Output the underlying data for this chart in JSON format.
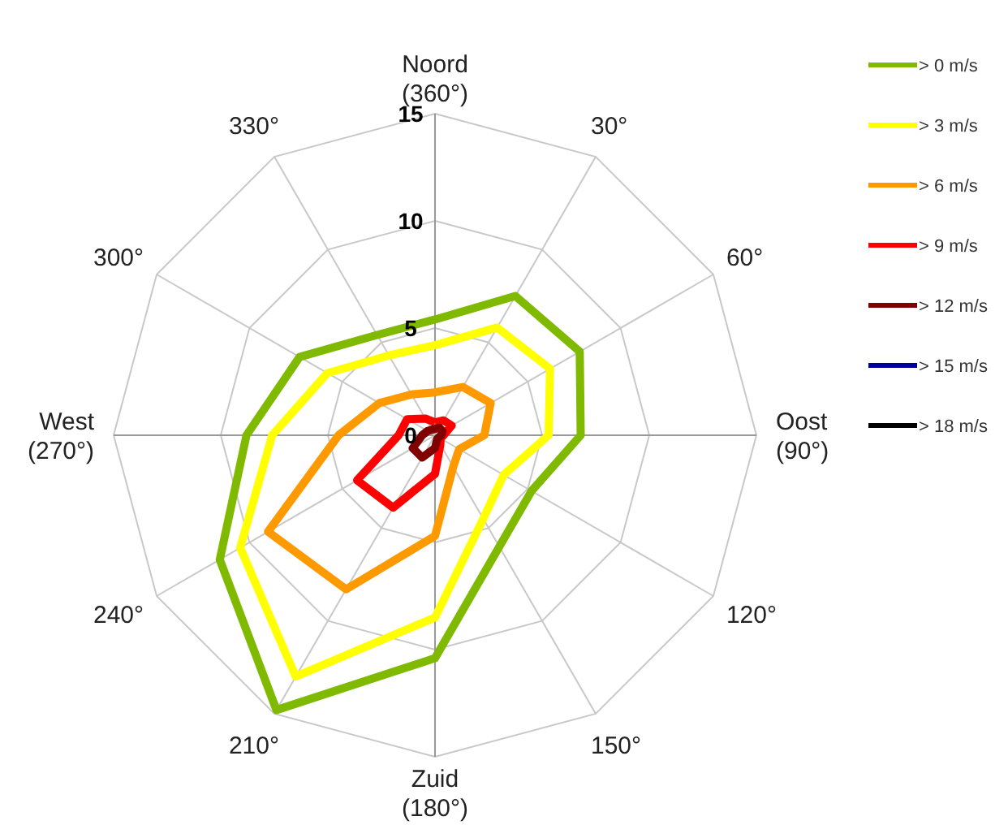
{
  "chart_data": {
    "type": "radar",
    "categories": [
      "Noord (360°)",
      "30°",
      "60°",
      "Oost (90°)",
      "120°",
      "150°",
      "Zuid (180°)",
      "210°",
      "240°",
      "West (270°)",
      "300°",
      "330°"
    ],
    "ylim": [
      0,
      15
    ],
    "yticks": [
      0,
      5,
      10,
      15
    ],
    "grid": true,
    "legend": "right",
    "marker": "none",
    "line_style": "solid",
    "series": [
      {
        "name": "> 0 m/s",
        "color": "#7fba00",
        "values": [
          5.4,
          7.5,
          7.8,
          6.8,
          5.2,
          6.0,
          10.4,
          14.8,
          11.6,
          8.8,
          7.3,
          5.4
        ]
      },
      {
        "name": "> 3 m/s",
        "color": "#ffff00",
        "values": [
          4.2,
          5.8,
          6.2,
          5.3,
          3.7,
          4.5,
          8.5,
          13.0,
          10.5,
          7.6,
          5.8,
          4.3
        ]
      },
      {
        "name": "> 6 m/s",
        "color": "#ff9900",
        "values": [
          2.0,
          2.6,
          3.0,
          2.3,
          1.3,
          1.7,
          4.7,
          8.3,
          9.0,
          4.5,
          3.0,
          2.2
        ]
      },
      {
        "name": "> 9 m/s",
        "color": "#ff0000",
        "values": [
          0.6,
          0.8,
          0.9,
          0.4,
          0.3,
          0.5,
          1.8,
          3.9,
          4.2,
          1.7,
          1.5,
          0.9
        ]
      },
      {
        "name": "> 12 m/s",
        "color": "#800000",
        "values": [
          0.3,
          0.4,
          0.4,
          0.3,
          0.2,
          0.2,
          0.6,
          1.2,
          1.2,
          0.6,
          0.4,
          0.3
        ]
      },
      {
        "name": "> 15 m/s",
        "color": "#000099",
        "values": [
          null,
          null,
          null,
          null,
          null,
          null,
          null,
          null,
          null,
          null,
          null,
          null
        ]
      },
      {
        "name": "> 18 m/s",
        "color": "#000000",
        "values": [
          null,
          null,
          null,
          null,
          null,
          null,
          null,
          null,
          null,
          null,
          null,
          null
        ]
      }
    ]
  }
}
